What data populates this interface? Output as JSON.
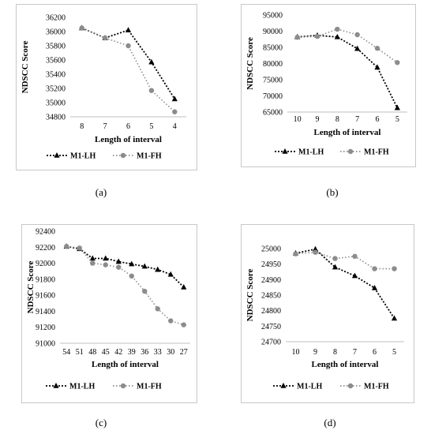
{
  "chart_data": [
    {
      "type": "line",
      "caption": "(a)",
      "xlabel": "Length of interval",
      "ylabel": "NDSCC Score",
      "categories": [
        "8",
        "7",
        "6",
        "5",
        "4"
      ],
      "yticks": [
        34800,
        35000,
        35200,
        35400,
        35600,
        35800,
        36000,
        36200
      ],
      "ylim": [
        34800,
        36200
      ],
      "series": [
        {
          "name": "M1-LH",
          "marker": "triangle",
          "color": "#000000",
          "values": [
            36050,
            35910,
            36020,
            35570,
            35050
          ]
        },
        {
          "name": "M1-FH",
          "marker": "circle",
          "color": "#8c8c8c",
          "values": [
            36050,
            35910,
            35800,
            35170,
            34870
          ]
        }
      ],
      "legend": "bottom"
    },
    {
      "type": "line",
      "caption": "(b)",
      "xlabel": "Length of interval",
      "ylabel": "NDSCC Score",
      "categories": [
        "10",
        "9",
        "8",
        "7",
        "6",
        "5"
      ],
      "yticks": [
        65000,
        70000,
        75000,
        80000,
        85000,
        90000,
        95000
      ],
      "ylim": [
        65000,
        95000
      ],
      "series": [
        {
          "name": "M1-LH",
          "marker": "triangle",
          "color": "#000000",
          "values": [
            88200,
            88700,
            88200,
            84600,
            78800,
            66300
          ]
        },
        {
          "name": "M1-FH",
          "marker": "circle",
          "color": "#8c8c8c",
          "values": [
            88100,
            88400,
            90600,
            88900,
            84700,
            80300
          ]
        }
      ],
      "legend": "bottom"
    },
    {
      "type": "line",
      "caption": "(c)",
      "xlabel": "Length of interval",
      "ylabel": "NDSCC Score",
      "categories": [
        "54",
        "51",
        "48",
        "45",
        "42",
        "39",
        "36",
        "33",
        "30",
        "27"
      ],
      "yticks": [
        91000,
        91200,
        91400,
        91600,
        91800,
        92000,
        92200,
        92400
      ],
      "ylim": [
        91000,
        92400
      ],
      "series": [
        {
          "name": "M1-LH",
          "marker": "triangle",
          "color": "#000000",
          "values": [
            92210,
            92180,
            92060,
            92060,
            92020,
            91990,
            91960,
            91920,
            91860,
            91700
          ]
        },
        {
          "name": "M1-FH",
          "marker": "circle",
          "color": "#8c8c8c",
          "values": [
            92210,
            92190,
            92000,
            91980,
            91950,
            91840,
            91650,
            91430,
            91280,
            91230
          ]
        }
      ],
      "legend": "bottom"
    },
    {
      "type": "line",
      "caption": "(d)",
      "xlabel": "Length of interval",
      "ylabel": "NDSCC Score",
      "categories": [
        "10",
        "9",
        "8",
        "7",
        "6",
        "5"
      ],
      "yticks": [
        24700,
        24750,
        24800,
        24850,
        24900,
        24950,
        25000
      ],
      "ylim": [
        24700,
        25000
      ],
      "series": [
        {
          "name": "M1-LH",
          "marker": "triangle",
          "color": "#000000",
          "values": [
            24985,
            24998,
            24940,
            24912,
            24873,
            24775
          ]
        },
        {
          "name": "M1-FH",
          "marker": "circle",
          "color": "#8c8c8c",
          "values": [
            24983,
            24988,
            24968,
            24975,
            24935,
            24935
          ]
        }
      ],
      "legend": "bottom"
    }
  ]
}
